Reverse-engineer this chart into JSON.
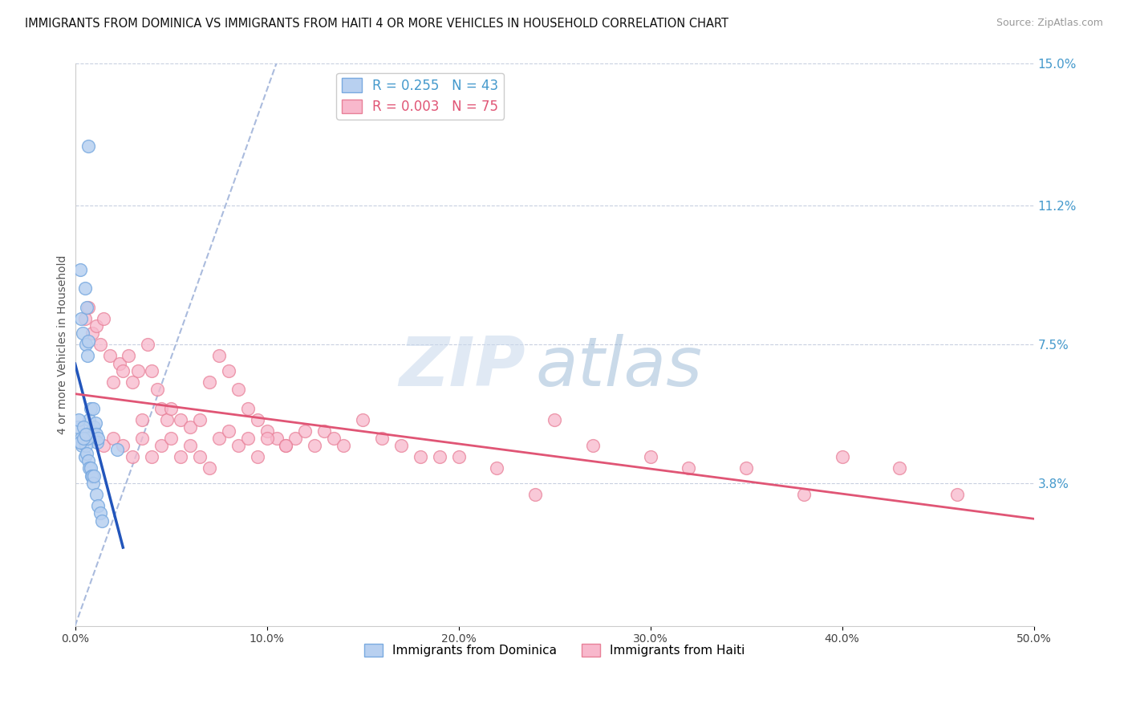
{
  "title": "IMMIGRANTS FROM DOMINICA VS IMMIGRANTS FROM HAITI 4 OR MORE VEHICLES IN HOUSEHOLD CORRELATION CHART",
  "source": "Source: ZipAtlas.com",
  "ylabel": "4 or more Vehicles in Household",
  "series1_label": "Immigrants from Dominica",
  "series1_color": "#b8d0f0",
  "series1_edge": "#7aaae0",
  "series1_R": 0.255,
  "series1_N": 43,
  "series2_label": "Immigrants from Haiti",
  "series2_color": "#f8b8cc",
  "series2_edge": "#e88098",
  "series2_R": 0.003,
  "series2_N": 75,
  "xlim": [
    0.0,
    50.0
  ],
  "ylim": [
    0.0,
    15.0
  ],
  "x_ticks": [
    0.0,
    10.0,
    20.0,
    30.0,
    40.0,
    50.0
  ],
  "x_tick_labels": [
    "0.0%",
    "10.0%",
    "20.0%",
    "30.0%",
    "40.0%",
    "50.0%"
  ],
  "y_ticks_right": [
    3.8,
    7.5,
    11.2,
    15.0
  ],
  "y_tick_labels_right": [
    "3.8%",
    "7.5%",
    "11.2%",
    "15.0%"
  ],
  "watermark_zip": "ZIP",
  "watermark_atlas": "atlas",
  "trend1_color": "#2255bb",
  "trend2_color": "#e05575",
  "diag_color": "#aabbdd",
  "dominica_x": [
    0.15,
    0.25,
    0.3,
    0.4,
    0.5,
    0.55,
    0.6,
    0.65,
    0.7,
    0.75,
    0.8,
    0.85,
    0.9,
    0.95,
    1.0,
    1.05,
    1.1,
    1.15,
    1.2,
    0.2,
    0.3,
    0.35,
    0.45,
    0.5,
    0.55,
    0.6,
    0.65,
    0.7,
    0.75,
    0.8,
    0.85,
    0.9,
    0.95,
    1.0,
    1.1,
    1.2,
    1.3,
    1.4,
    0.25,
    0.45,
    0.55,
    0.7,
    2.2
  ],
  "dominica_y": [
    5.3,
    9.5,
    8.2,
    7.8,
    9.0,
    7.5,
    8.5,
    7.2,
    7.6,
    5.5,
    5.8,
    5.2,
    5.0,
    5.8,
    5.3,
    5.4,
    5.1,
    4.9,
    5.0,
    5.5,
    5.0,
    4.8,
    5.3,
    4.5,
    4.8,
    4.6,
    5.0,
    4.4,
    4.2,
    4.2,
    4.0,
    4.0,
    3.8,
    4.0,
    3.5,
    3.2,
    3.0,
    2.8,
    4.9,
    5.0,
    5.1,
    12.8,
    4.7
  ],
  "haiti_x": [
    0.5,
    0.7,
    0.9,
    1.1,
    1.3,
    1.5,
    1.8,
    2.0,
    2.3,
    2.5,
    2.8,
    3.0,
    3.3,
    3.5,
    3.8,
    4.0,
    4.3,
    4.5,
    4.8,
    5.0,
    5.5,
    6.0,
    6.5,
    7.0,
    7.5,
    8.0,
    8.5,
    9.0,
    9.5,
    10.0,
    10.5,
    11.0,
    11.5,
    12.0,
    12.5,
    13.0,
    13.5,
    14.0,
    15.0,
    16.0,
    17.0,
    18.0,
    19.0,
    20.0,
    22.0,
    24.0,
    25.0,
    27.0,
    30.0,
    32.0,
    35.0,
    38.0,
    40.0,
    43.0,
    46.0,
    1.0,
    1.5,
    2.0,
    2.5,
    3.0,
    3.5,
    4.0,
    4.5,
    5.0,
    5.5,
    6.0,
    6.5,
    7.0,
    7.5,
    8.0,
    8.5,
    9.0,
    9.5,
    10.0,
    11.0
  ],
  "haiti_y": [
    8.2,
    8.5,
    7.8,
    8.0,
    7.5,
    8.2,
    7.2,
    6.5,
    7.0,
    6.8,
    7.2,
    6.5,
    6.8,
    5.5,
    7.5,
    6.8,
    6.3,
    5.8,
    5.5,
    5.8,
    5.5,
    5.3,
    5.5,
    6.5,
    7.2,
    6.8,
    6.3,
    5.8,
    5.5,
    5.2,
    5.0,
    4.8,
    5.0,
    5.2,
    4.8,
    5.2,
    5.0,
    4.8,
    5.5,
    5.0,
    4.8,
    4.5,
    4.5,
    4.5,
    4.2,
    3.5,
    5.5,
    4.8,
    4.5,
    4.2,
    4.2,
    3.5,
    4.5,
    4.2,
    3.5,
    5.0,
    4.8,
    5.0,
    4.8,
    4.5,
    5.0,
    4.5,
    4.8,
    5.0,
    4.5,
    4.8,
    4.5,
    4.2,
    5.0,
    5.2,
    4.8,
    5.0,
    4.5,
    5.0,
    4.8
  ]
}
